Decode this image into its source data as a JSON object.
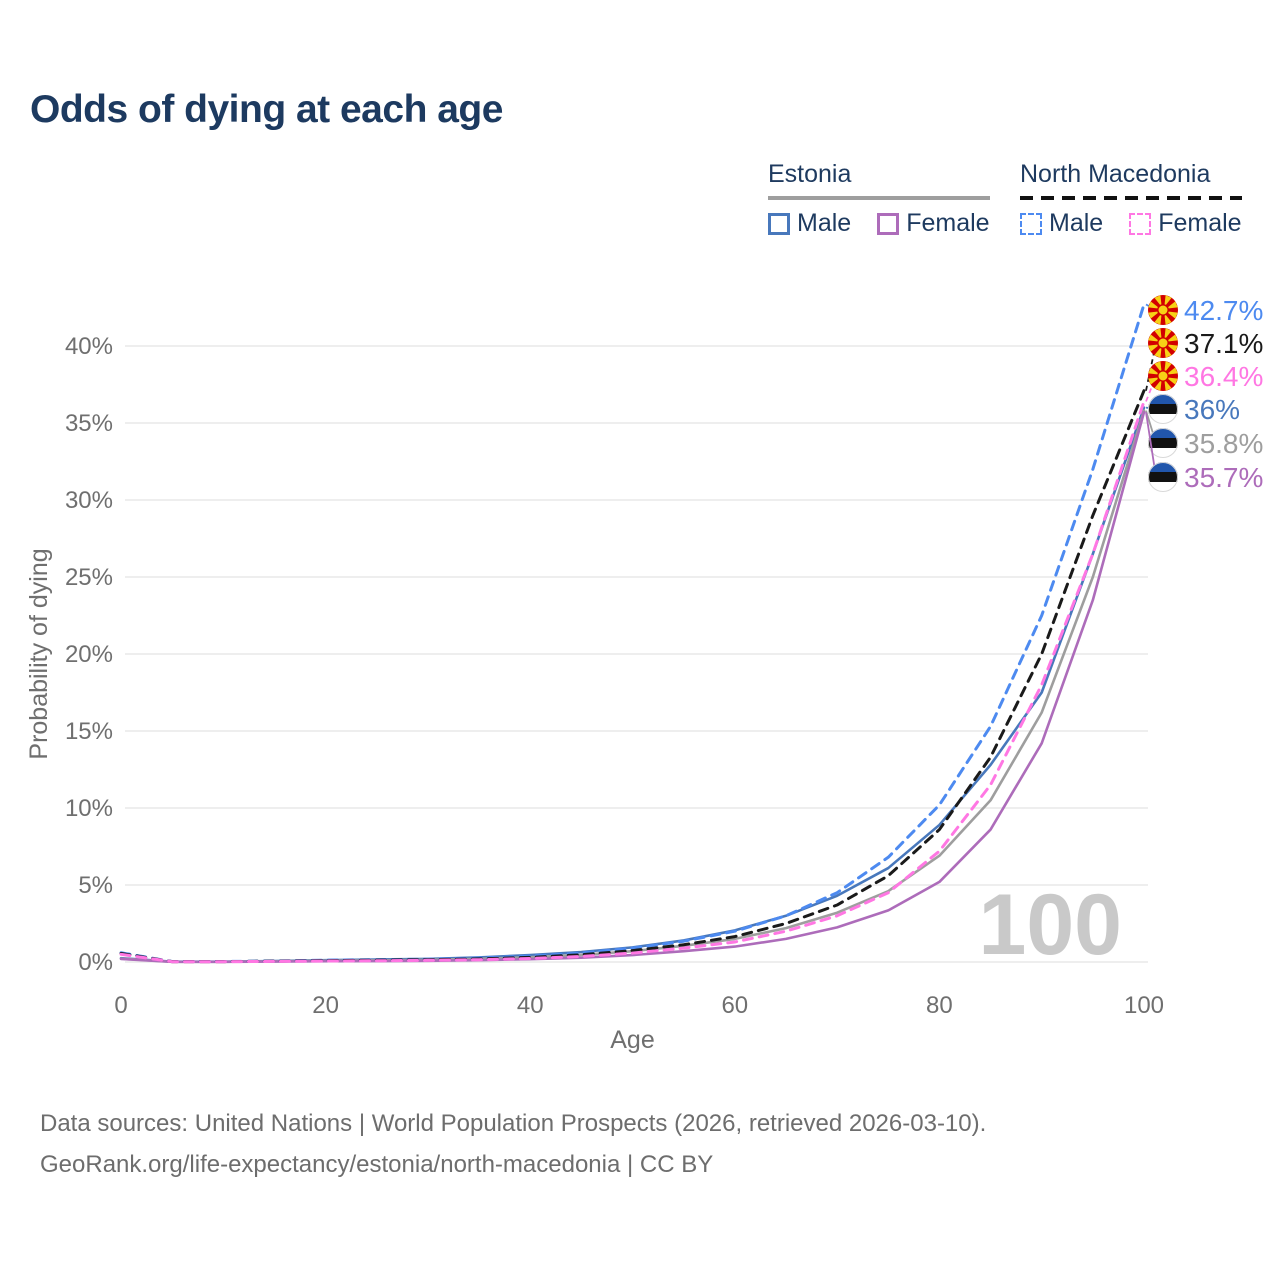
{
  "title": "Odds of dying at each age",
  "legend": {
    "groups": [
      {
        "country": "Estonia",
        "line_style": "solid",
        "items": [
          {
            "label": "Male",
            "color": "#4878bc",
            "dashed": false
          },
          {
            "label": "Female",
            "color": "#ad6cba",
            "dashed": false
          }
        ]
      },
      {
        "country": "North Macedonia",
        "line_style": "dashed",
        "items": [
          {
            "label": "Male",
            "color": "#4d8af0",
            "dashed": true
          },
          {
            "label": "Female",
            "color": "#ff77e3",
            "dashed": true
          }
        ]
      }
    ]
  },
  "watermark": "100",
  "chart_data": {
    "type": "line",
    "title": "Odds of dying at each age",
    "xlabel": "Age",
    "ylabel": "Probability of dying",
    "xlim": [
      0,
      100
    ],
    "ylim": [
      0,
      43
    ],
    "grid": "horizontal",
    "legend_position": "top-right",
    "x_ticks": [
      {
        "v": 0,
        "label": "0"
      },
      {
        "v": 20,
        "label": "20"
      },
      {
        "v": 40,
        "label": "40"
      },
      {
        "v": 60,
        "label": "60"
      },
      {
        "v": 80,
        "label": "80"
      },
      {
        "v": 100,
        "label": "100"
      }
    ],
    "y_ticks": [
      {
        "v": 0,
        "label": "0%"
      },
      {
        "v": 5,
        "label": "5%"
      },
      {
        "v": 10,
        "label": "10%"
      },
      {
        "v": 15,
        "label": "15%"
      },
      {
        "v": 20,
        "label": "20%"
      },
      {
        "v": 25,
        "label": "25%"
      },
      {
        "v": 30,
        "label": "30%"
      },
      {
        "v": 35,
        "label": "35%"
      },
      {
        "v": 40,
        "label": "40%"
      }
    ],
    "x": [
      0,
      5,
      10,
      15,
      20,
      25,
      30,
      35,
      40,
      45,
      50,
      55,
      60,
      65,
      70,
      75,
      80,
      85,
      90,
      95,
      100
    ],
    "series": [
      {
        "name": "North Macedonia — Male",
        "country": "North Macedonia",
        "sex": "Male",
        "color": "#4d8af0",
        "dashed": true,
        "flag": "mk",
        "end_label": "42.7%",
        "values": [
          0.6,
          0.03,
          0.03,
          0.07,
          0.12,
          0.15,
          0.18,
          0.26,
          0.38,
          0.58,
          0.9,
          1.35,
          2.0,
          3.0,
          4.5,
          6.8,
          10.2,
          15.3,
          22.5,
          32.0,
          42.7
        ]
      },
      {
        "name": "North Macedonia — Both sexes",
        "country": "North Macedonia",
        "sex": "Both",
        "color": "#1a1a1a",
        "dashed": true,
        "flag": "mk",
        "end_label": "37.1%",
        "values": [
          0.55,
          0.025,
          0.025,
          0.055,
          0.09,
          0.12,
          0.15,
          0.2,
          0.3,
          0.47,
          0.74,
          1.12,
          1.65,
          2.5,
          3.7,
          5.6,
          8.6,
          13.3,
          20.0,
          29.0,
          37.1
        ]
      },
      {
        "name": "North Macedonia — Female",
        "country": "North Macedonia",
        "sex": "Female",
        "color": "#ff77e3",
        "dashed": true,
        "flag": "mk",
        "end_label": "36.4%",
        "values": [
          0.5,
          0.02,
          0.02,
          0.04,
          0.06,
          0.08,
          0.11,
          0.15,
          0.23,
          0.36,
          0.58,
          0.9,
          1.3,
          2.0,
          3.0,
          4.5,
          7.2,
          11.5,
          18.0,
          26.5,
          36.4
        ]
      },
      {
        "name": "Estonia — Male",
        "country": "Estonia",
        "sex": "Male",
        "color": "#4878bc",
        "dashed": false,
        "flag": "ee",
        "end_label": "36%",
        "values": [
          0.25,
          0.02,
          0.02,
          0.06,
          0.12,
          0.16,
          0.2,
          0.3,
          0.45,
          0.65,
          0.95,
          1.4,
          2.05,
          3.0,
          4.3,
          6.1,
          8.9,
          12.8,
          17.5,
          26.5,
          36.0
        ]
      },
      {
        "name": "Estonia — Both sexes",
        "country": "Estonia",
        "sex": "Both",
        "color": "#9e9e9e",
        "dashed": false,
        "flag": "ee",
        "end_label": "35.8%",
        "values": [
          0.22,
          0.015,
          0.015,
          0.045,
          0.09,
          0.11,
          0.14,
          0.21,
          0.31,
          0.46,
          0.7,
          1.05,
          1.5,
          2.2,
          3.2,
          4.6,
          6.9,
          10.5,
          16.2,
          25.0,
          35.8
        ]
      },
      {
        "name": "Estonia — Female",
        "country": "Estonia",
        "sex": "Female",
        "color": "#ad6cba",
        "dashed": false,
        "flag": "ee",
        "end_label": "35.7%",
        "values": [
          0.2,
          0.01,
          0.01,
          0.03,
          0.05,
          0.06,
          0.08,
          0.12,
          0.18,
          0.28,
          0.45,
          0.7,
          1.0,
          1.5,
          2.25,
          3.35,
          5.2,
          8.6,
          14.2,
          23.5,
          35.7
        ]
      }
    ]
  },
  "footer": {
    "line1": "Data sources: United Nations | World Population Prospects (2026, retrieved 2026-03-10).",
    "line2": "GeoRank.org/life-expectancy/estonia/north-macedonia | CC BY"
  }
}
